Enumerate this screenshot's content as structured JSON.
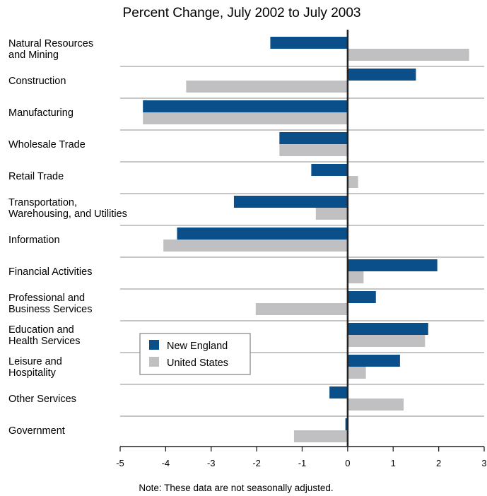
{
  "chart_data": {
    "type": "bar",
    "orientation": "horizontal",
    "title": "Percent Change, July 2002 to July 2003",
    "note": "Note: These data are not seasonally adjusted.",
    "xlim": [
      -5,
      3
    ],
    "xticks": [
      "-5",
      "-4",
      "-3",
      "-2",
      "-1",
      "0",
      "1",
      "2",
      "3"
    ],
    "categories": [
      [
        "Natural Resources",
        "and Mining"
      ],
      [
        "Construction"
      ],
      [
        "Manufacturing"
      ],
      [
        "Wholesale Trade"
      ],
      [
        "Retail Trade"
      ],
      [
        "Transportation,",
        "Warehousing, and Utilities"
      ],
      [
        "Information"
      ],
      [
        "Financial Activities"
      ],
      [
        "Professional and",
        "Business Services"
      ],
      [
        "Education and",
        "Health Services"
      ],
      [
        "Leisure and",
        "Hospitality"
      ],
      [
        "Other Services"
      ],
      [
        "Government"
      ]
    ],
    "series": [
      {
        "name": "New England",
        "color": "#0b4f8a",
        "values": [
          -1.7,
          1.5,
          -4.5,
          -1.5,
          -0.8,
          -2.5,
          -3.75,
          1.97,
          0.62,
          1.77,
          1.15,
          -0.4,
          -0.05
        ]
      },
      {
        "name": "United States",
        "color": "#c0c0c2",
        "values": [
          2.67,
          -3.55,
          -4.5,
          -1.5,
          0.23,
          -0.7,
          -4.05,
          0.35,
          -2.02,
          1.7,
          0.4,
          1.23,
          -1.18
        ]
      }
    ],
    "legend_position": "lower-left, inside plot"
  }
}
